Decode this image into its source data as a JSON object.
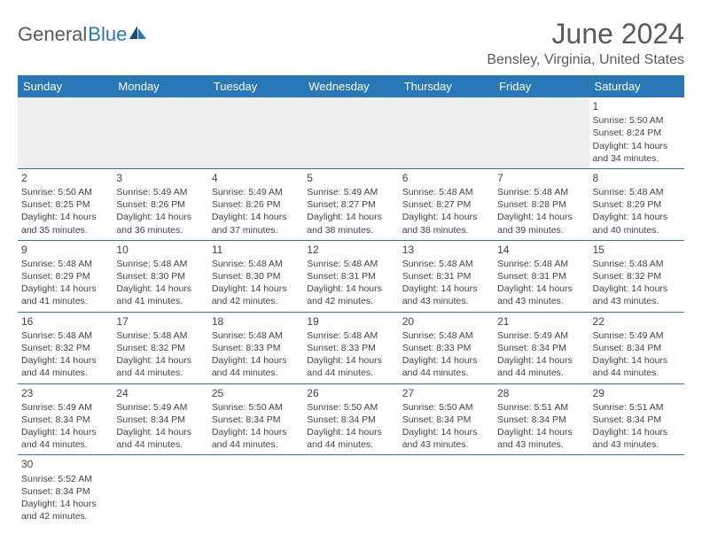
{
  "logo": {
    "text1": "General",
    "text2": "Blue"
  },
  "title": "June 2024",
  "location": "Bensley, Virginia, United States",
  "columns": [
    "Sunday",
    "Monday",
    "Tuesday",
    "Wednesday",
    "Thursday",
    "Friday",
    "Saturday"
  ],
  "header_bg": "#2878b8",
  "header_fg": "#ffffff",
  "border_color": "#2878b8",
  "empty_bg": "#eeeeee",
  "weeks": [
    [
      null,
      null,
      null,
      null,
      null,
      null,
      {
        "d": "1",
        "sr": "5:50 AM",
        "ss": "8:24 PM",
        "dl": "14 hours and 34 minutes."
      }
    ],
    [
      {
        "d": "2",
        "sr": "5:50 AM",
        "ss": "8:25 PM",
        "dl": "14 hours and 35 minutes."
      },
      {
        "d": "3",
        "sr": "5:49 AM",
        "ss": "8:26 PM",
        "dl": "14 hours and 36 minutes."
      },
      {
        "d": "4",
        "sr": "5:49 AM",
        "ss": "8:26 PM",
        "dl": "14 hours and 37 minutes."
      },
      {
        "d": "5",
        "sr": "5:49 AM",
        "ss": "8:27 PM",
        "dl": "14 hours and 38 minutes."
      },
      {
        "d": "6",
        "sr": "5:48 AM",
        "ss": "8:27 PM",
        "dl": "14 hours and 38 minutes."
      },
      {
        "d": "7",
        "sr": "5:48 AM",
        "ss": "8:28 PM",
        "dl": "14 hours and 39 minutes."
      },
      {
        "d": "8",
        "sr": "5:48 AM",
        "ss": "8:29 PM",
        "dl": "14 hours and 40 minutes."
      }
    ],
    [
      {
        "d": "9",
        "sr": "5:48 AM",
        "ss": "8:29 PM",
        "dl": "14 hours and 41 minutes."
      },
      {
        "d": "10",
        "sr": "5:48 AM",
        "ss": "8:30 PM",
        "dl": "14 hours and 41 minutes."
      },
      {
        "d": "11",
        "sr": "5:48 AM",
        "ss": "8:30 PM",
        "dl": "14 hours and 42 minutes."
      },
      {
        "d": "12",
        "sr": "5:48 AM",
        "ss": "8:31 PM",
        "dl": "14 hours and 42 minutes."
      },
      {
        "d": "13",
        "sr": "5:48 AM",
        "ss": "8:31 PM",
        "dl": "14 hours and 43 minutes."
      },
      {
        "d": "14",
        "sr": "5:48 AM",
        "ss": "8:31 PM",
        "dl": "14 hours and 43 minutes."
      },
      {
        "d": "15",
        "sr": "5:48 AM",
        "ss": "8:32 PM",
        "dl": "14 hours and 43 minutes."
      }
    ],
    [
      {
        "d": "16",
        "sr": "5:48 AM",
        "ss": "8:32 PM",
        "dl": "14 hours and 44 minutes."
      },
      {
        "d": "17",
        "sr": "5:48 AM",
        "ss": "8:32 PM",
        "dl": "14 hours and 44 minutes."
      },
      {
        "d": "18",
        "sr": "5:48 AM",
        "ss": "8:33 PM",
        "dl": "14 hours and 44 minutes."
      },
      {
        "d": "19",
        "sr": "5:48 AM",
        "ss": "8:33 PM",
        "dl": "14 hours and 44 minutes."
      },
      {
        "d": "20",
        "sr": "5:48 AM",
        "ss": "8:33 PM",
        "dl": "14 hours and 44 minutes."
      },
      {
        "d": "21",
        "sr": "5:49 AM",
        "ss": "8:34 PM",
        "dl": "14 hours and 44 minutes."
      },
      {
        "d": "22",
        "sr": "5:49 AM",
        "ss": "8:34 PM",
        "dl": "14 hours and 44 minutes."
      }
    ],
    [
      {
        "d": "23",
        "sr": "5:49 AM",
        "ss": "8:34 PM",
        "dl": "14 hours and 44 minutes."
      },
      {
        "d": "24",
        "sr": "5:49 AM",
        "ss": "8:34 PM",
        "dl": "14 hours and 44 minutes."
      },
      {
        "d": "25",
        "sr": "5:50 AM",
        "ss": "8:34 PM",
        "dl": "14 hours and 44 minutes."
      },
      {
        "d": "26",
        "sr": "5:50 AM",
        "ss": "8:34 PM",
        "dl": "14 hours and 44 minutes."
      },
      {
        "d": "27",
        "sr": "5:50 AM",
        "ss": "8:34 PM",
        "dl": "14 hours and 43 minutes."
      },
      {
        "d": "28",
        "sr": "5:51 AM",
        "ss": "8:34 PM",
        "dl": "14 hours and 43 minutes."
      },
      {
        "d": "29",
        "sr": "5:51 AM",
        "ss": "8:34 PM",
        "dl": "14 hours and 43 minutes."
      }
    ],
    [
      {
        "d": "30",
        "sr": "5:52 AM",
        "ss": "8:34 PM",
        "dl": "14 hours and 42 minutes."
      },
      null,
      null,
      null,
      null,
      null,
      null
    ]
  ],
  "labels": {
    "sunrise": "Sunrise: ",
    "sunset": "Sunset: ",
    "daylight": "Daylight: "
  }
}
